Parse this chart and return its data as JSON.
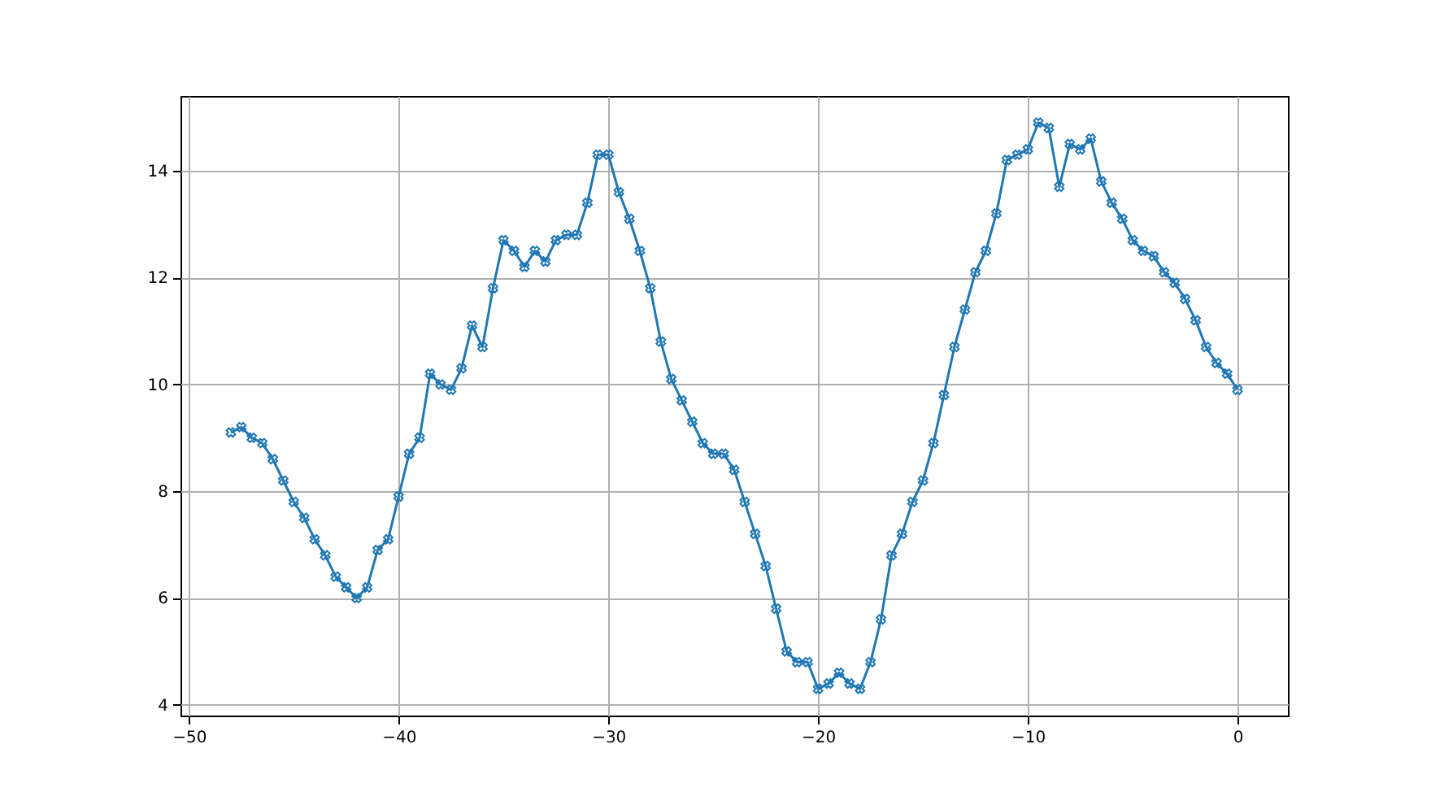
{
  "chart_data": {
    "type": "line",
    "x": [
      -48,
      -47.5,
      -47,
      -46.5,
      -46,
      -45.5,
      -45,
      -44.5,
      -44,
      -43.5,
      -43,
      -42.5,
      -42,
      -41.5,
      -41,
      -40.5,
      -40,
      -39.5,
      -39,
      -38.5,
      -38,
      -37.5,
      -37,
      -36.5,
      -36,
      -35.5,
      -35,
      -34.5,
      -34,
      -33.5,
      -33,
      -32.5,
      -32,
      -31.5,
      -31,
      -30.5,
      -30,
      -29.5,
      -29,
      -28.5,
      -28,
      -27.5,
      -27,
      -26.5,
      -26,
      -25.5,
      -25,
      -24.5,
      -24,
      -23.5,
      -23,
      -22.5,
      -22,
      -21.5,
      -21,
      -20.5,
      -20,
      -19.5,
      -19,
      -18.5,
      -18,
      -17.5,
      -17,
      -16.5,
      -16,
      -15.5,
      -15,
      -14.5,
      -14,
      -13.5,
      -13,
      -12.5,
      -12,
      -11.5,
      -11,
      -10.5,
      -10,
      -9.5,
      -9,
      -8.5,
      -8,
      -7.5,
      -7,
      -6.5,
      -6,
      -5.5,
      -5,
      -4.5,
      -4,
      -3.5,
      -3,
      -2.5,
      -2,
      -1.5,
      -1,
      -0.5,
      0
    ],
    "series": [
      {
        "color": "#1f77b4",
        "values": [
          9.1,
          9.2,
          9.0,
          8.9,
          8.6,
          8.2,
          7.8,
          7.5,
          7.1,
          6.8,
          6.4,
          6.2,
          6.0,
          6.2,
          6.9,
          7.1,
          7.9,
          8.7,
          9.0,
          10.2,
          10.0,
          9.9,
          10.3,
          11.1,
          10.7,
          11.8,
          12.7,
          12.5,
          12.2,
          12.5,
          12.3,
          12.7,
          12.8,
          12.8,
          13.4,
          14.3,
          14.3,
          13.6,
          13.1,
          12.5,
          11.8,
          10.8,
          10.1,
          9.7,
          9.3,
          8.9,
          8.7,
          8.7,
          8.4,
          7.8,
          7.2,
          6.6,
          5.8,
          5.0,
          4.8,
          4.8,
          4.3,
          4.4,
          4.6,
          4.4,
          4.3,
          4.8,
          5.6,
          6.8,
          7.2,
          7.8,
          8.2,
          8.9,
          9.8,
          10.7,
          11.4,
          12.1,
          12.5,
          13.2,
          14.2,
          14.3,
          14.4,
          14.9,
          14.8,
          13.7,
          14.5,
          14.4,
          14.6,
          13.8,
          13.4,
          13.1,
          12.7,
          12.5,
          12.4,
          12.1,
          11.9,
          11.6,
          11.2,
          10.7,
          10.4,
          10.2,
          9.9
        ]
      }
    ],
    "xlim": [
      -50.4,
      2.4
    ],
    "xticks": [
      -50,
      -40,
      -30,
      -20,
      -10,
      0
    ],
    "ylim": [
      3.8,
      15.4
    ],
    "yticks": [
      4,
      6,
      8,
      10,
      12,
      14
    ],
    "grid": true,
    "marker": "cross",
    "line_style": "solid"
  }
}
